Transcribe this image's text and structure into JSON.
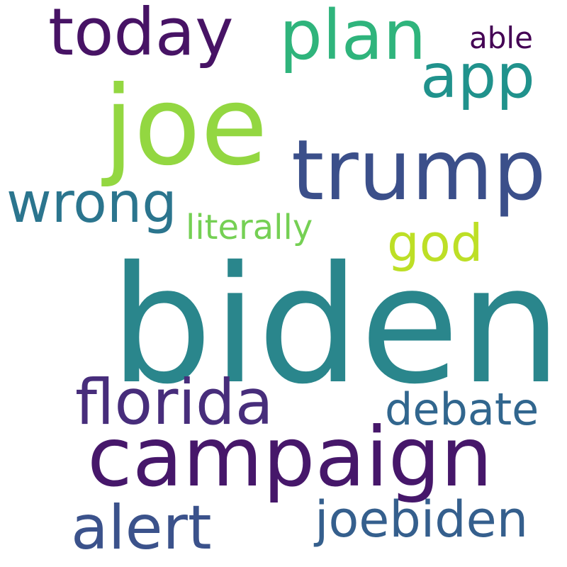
{
  "words": [
    {
      "text": "biden",
      "color": "#2a868c"
    },
    {
      "text": "campaign",
      "color": "#46176a"
    },
    {
      "text": "joe",
      "color": "#93d741"
    },
    {
      "text": "trump",
      "color": "#3b4f8a"
    },
    {
      "text": "today",
      "color": "#471365"
    },
    {
      "text": "plan",
      "color": "#2fb47c"
    },
    {
      "text": "app",
      "color": "#20928c"
    },
    {
      "text": "florida",
      "color": "#472d7b"
    },
    {
      "text": "alert",
      "color": "#3b528b"
    },
    {
      "text": "wrong",
      "color": "#2b758e"
    },
    {
      "text": "joebiden",
      "color": "#355f8d"
    },
    {
      "text": "debate",
      "color": "#31668e"
    },
    {
      "text": "god",
      "color": "#bddf26"
    },
    {
      "text": "literally",
      "color": "#75d054"
    },
    {
      "text": "able",
      "color": "#440154"
    }
  ]
}
